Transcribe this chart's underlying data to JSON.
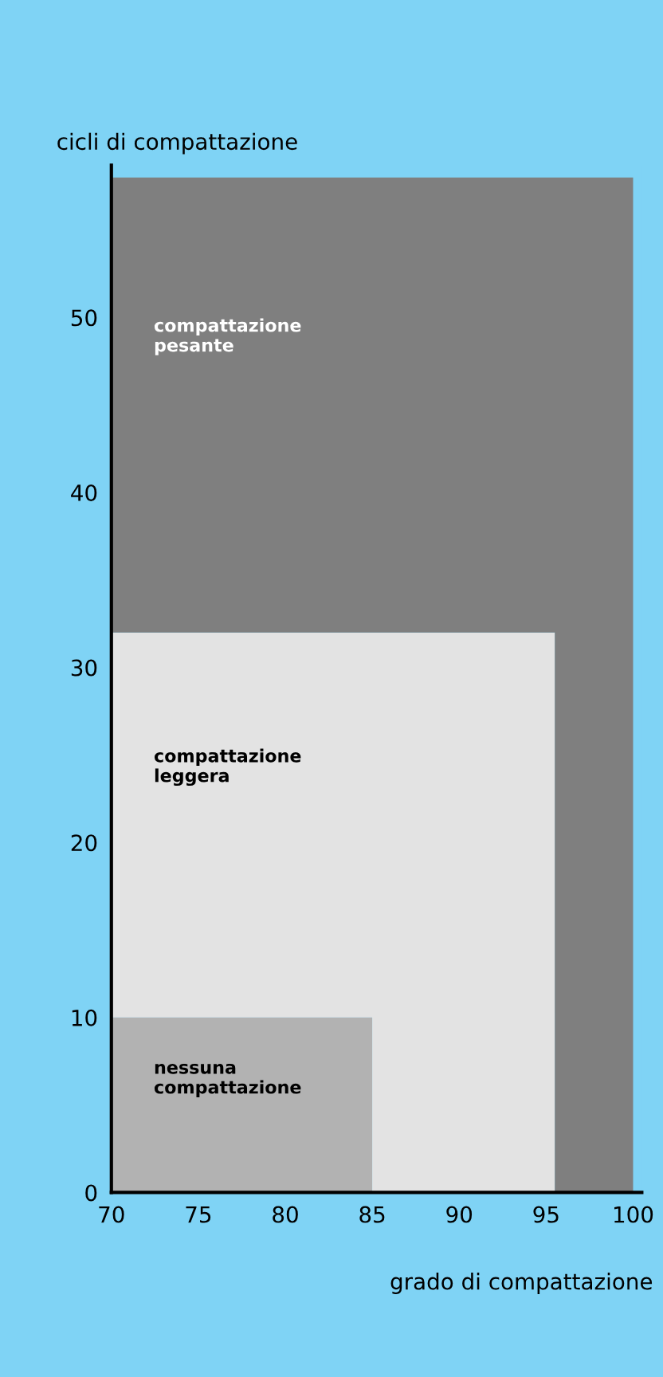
{
  "chart_data": {
    "type": "area",
    "stacked": true,
    "xlabel": "grado di compattazione",
    "ylabel": "cicli di compattazione",
    "xlim": [
      70,
      100.5
    ],
    "ylim": [
      0,
      58.7
    ],
    "xticks": [
      70,
      75,
      80,
      85,
      90,
      95,
      100
    ],
    "yticks": [
      0,
      10,
      20,
      30,
      40,
      50
    ],
    "x": [
      70,
      85,
      85,
      95.5,
      95.5,
      100
    ],
    "series": [
      {
        "color": "#b2b2b2",
        "values": [
          10,
          10,
          0,
          0,
          0,
          0
        ]
      },
      {
        "color": "#e3e3e3",
        "values": [
          22,
          22,
          32,
          32,
          0,
          0
        ]
      },
      {
        "color": "#7f7f7f",
        "values": [
          26,
          26,
          26,
          26,
          58,
          58
        ]
      }
    ],
    "annotations": [
      "compattazione\npesante",
      "compattazione\nleggera",
      "nessuna\ncompattazione"
    ]
  }
}
